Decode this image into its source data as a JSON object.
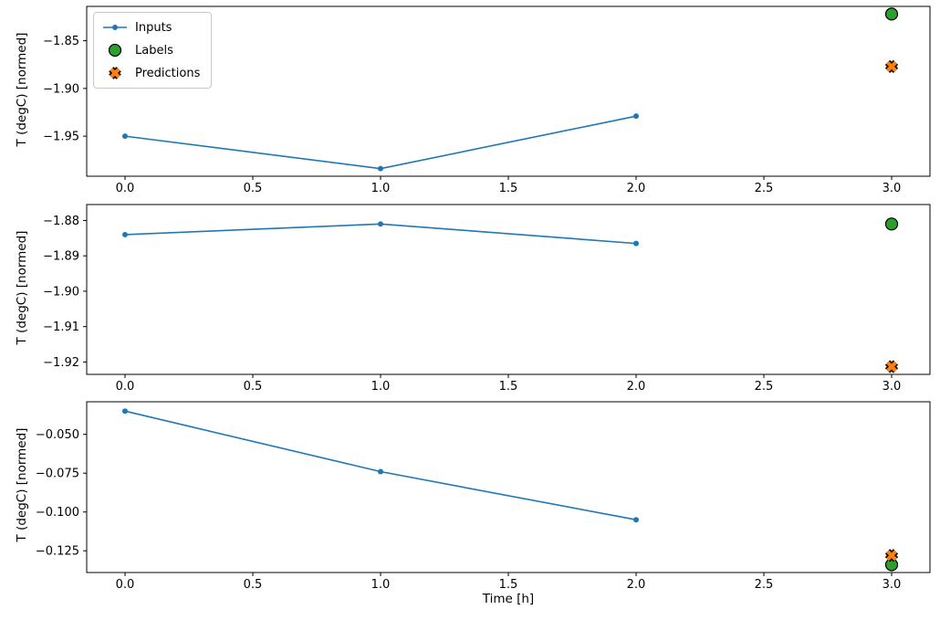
{
  "figure": {
    "background": "#ffffff",
    "xlabel": "Time [h]",
    "ylabel": "T (degC) [normed]"
  },
  "colors": {
    "inputs": "#1f77b4",
    "labels": "#2ca02c",
    "predictions": "#ff7f0e",
    "marker_edge": "#000000",
    "spine": "#000000"
  },
  "legend": {
    "position": "upper-left",
    "items": [
      {
        "label": "Inputs",
        "marker": "line-dot",
        "color": "#1f77b4"
      },
      {
        "label": "Labels",
        "marker": "circle",
        "color": "#2ca02c",
        "edge": "#000000"
      },
      {
        "label": "Predictions",
        "marker": "x",
        "color": "#ff7f0e",
        "edge": "#000000"
      }
    ]
  },
  "chart_data": [
    {
      "type": "line",
      "title": "",
      "xlabel": "",
      "ylabel": "T (degC) [normed]",
      "grid": false,
      "xlim": [
        -0.15,
        3.15
      ],
      "ylim": [
        -1.992,
        -1.814
      ],
      "xticks": [
        0,
        0.5,
        1,
        1.5,
        2,
        2.5,
        3
      ],
      "xtick_labels": [
        "0.0",
        "0.5",
        "1.0",
        "1.5",
        "2.0",
        "2.5",
        "3.0"
      ],
      "yticks": [
        -1.85,
        -1.9,
        -1.95
      ],
      "ytick_labels": [
        "−1.85",
        "−1.90",
        "−1.95"
      ],
      "series": [
        {
          "name": "Inputs",
          "marker": "line-dot",
          "color": "#1f77b4",
          "x": [
            0,
            1,
            2
          ],
          "y": [
            -1.95,
            -1.984,
            -1.929
          ]
        },
        {
          "name": "Labels",
          "marker": "circle",
          "color": "#2ca02c",
          "x": [
            3
          ],
          "y": [
            -1.822
          ]
        },
        {
          "name": "Predictions",
          "marker": "x",
          "color": "#ff7f0e",
          "x": [
            3
          ],
          "y": [
            -1.877
          ]
        }
      ]
    },
    {
      "type": "line",
      "title": "",
      "xlabel": "",
      "ylabel": "T (degC) [normed]",
      "grid": false,
      "xlim": [
        -0.15,
        3.15
      ],
      "ylim": [
        -1.9235,
        -1.8755
      ],
      "xticks": [
        0,
        0.5,
        1,
        1.5,
        2,
        2.5,
        3
      ],
      "xtick_labels": [
        "0.0",
        "0.5",
        "1.0",
        "1.5",
        "2.0",
        "2.5",
        "3.0"
      ],
      "yticks": [
        -1.88,
        -1.89,
        -1.9,
        -1.91,
        -1.92
      ],
      "ytick_labels": [
        "−1.88",
        "−1.89",
        "−1.90",
        "−1.91",
        "−1.92"
      ],
      "series": [
        {
          "name": "Inputs",
          "marker": "line-dot",
          "color": "#1f77b4",
          "x": [
            0,
            1,
            2
          ],
          "y": [
            -1.884,
            -1.881,
            -1.8865
          ]
        },
        {
          "name": "Labels",
          "marker": "circle",
          "color": "#2ca02c",
          "x": [
            3
          ],
          "y": [
            -1.881
          ]
        },
        {
          "name": "Predictions",
          "marker": "x",
          "color": "#ff7f0e",
          "x": [
            3
          ],
          "y": [
            -1.9213
          ]
        }
      ]
    },
    {
      "type": "line",
      "title": "",
      "xlabel": "Time [h]",
      "ylabel": "T (degC) [normed]",
      "grid": false,
      "xlim": [
        -0.15,
        3.15
      ],
      "ylim": [
        -0.139,
        -0.029
      ],
      "xticks": [
        0,
        0.5,
        1,
        1.5,
        2,
        2.5,
        3
      ],
      "xtick_labels": [
        "0.0",
        "0.5",
        "1.0",
        "1.5",
        "2.0",
        "2.5",
        "3.0"
      ],
      "yticks": [
        -0.05,
        -0.075,
        -0.1,
        -0.125
      ],
      "ytick_labels": [
        "−0.050",
        "−0.075",
        "−0.100",
        "−0.125"
      ],
      "series": [
        {
          "name": "Inputs",
          "marker": "line-dot",
          "color": "#1f77b4",
          "x": [
            0,
            1,
            2
          ],
          "y": [
            -0.035,
            -0.074,
            -0.105
          ]
        },
        {
          "name": "Labels",
          "marker": "circle",
          "color": "#2ca02c",
          "x": [
            3
          ],
          "y": [
            -0.134
          ]
        },
        {
          "name": "Predictions",
          "marker": "x",
          "color": "#ff7f0e",
          "x": [
            3
          ],
          "y": [
            -0.128
          ]
        }
      ]
    }
  ]
}
